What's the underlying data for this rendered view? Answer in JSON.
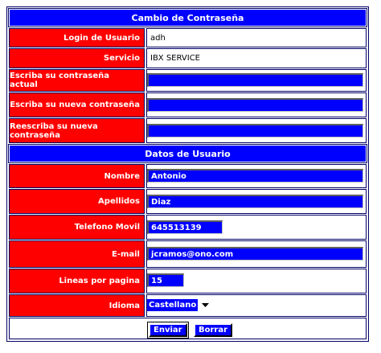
{
  "password_section": {
    "title": "Cambio de Contraseña",
    "login_label": "Login de Usuario",
    "login_value": "adh",
    "service_label": "Servicio",
    "service_value": "IBX SERVICE",
    "current_password_label": "Escriba su contraseña actual",
    "new_password_label": "Escriba su nueva contraseña",
    "repeat_password_label": "Reescriba su nueva contraseña"
  },
  "user_section": {
    "title": "Datos de Usuario",
    "name_label": "Nombre",
    "name_value": "Antonio",
    "surname_label": "Apellidos",
    "surname_value": "Diaz",
    "phone_label": "Telefono Movil",
    "phone_value": "645513139",
    "email_label": "E-mail",
    "email_value": "jcramos@ono.com",
    "lines_label": "Lineas por pagina",
    "lines_value": "15",
    "language_label": "Idioma",
    "language_value": "Castellano"
  },
  "buttons": {
    "submit": "Enviar",
    "reset": "Borrar"
  },
  "colors": {
    "header_bg": "#0000ff",
    "label_bg": "#ff0000",
    "input_bg": "#0000ff",
    "border": "#000066"
  }
}
